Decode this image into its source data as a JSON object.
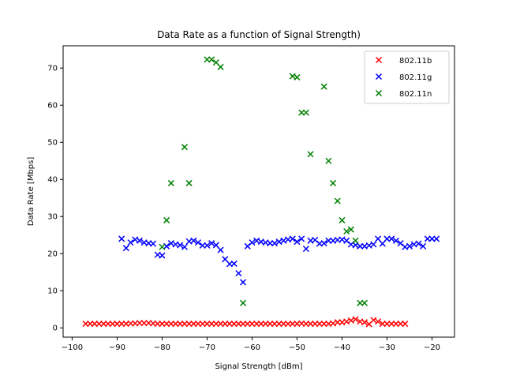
{
  "chart_data": {
    "type": "scatter",
    "title": "Data Rate as a function of Signal Strength)",
    "xlabel": "Signal Strength [dBm]",
    "ylabel": "Data Rate [Mbps]",
    "xlim": [
      -102,
      -15
    ],
    "ylim": [
      -2.5,
      76
    ],
    "xticks": [
      -100,
      -90,
      -80,
      -70,
      -60,
      -50,
      -40,
      -30,
      -20
    ],
    "yticks": [
      0,
      10,
      20,
      30,
      40,
      50,
      60,
      70
    ],
    "xtick_labels": [
      "−100",
      "−90",
      "−80",
      "−70",
      "−60",
      "−50",
      "−40",
      "−30",
      "−20"
    ],
    "ytick_labels": [
      "0",
      "10",
      "20",
      "30",
      "40",
      "50",
      "60",
      "70"
    ],
    "grid": false,
    "marker": "x",
    "legend_position": "top-right",
    "series": [
      {
        "name": "802.11b",
        "color": "#ff0000",
        "x": [
          -97,
          -96,
          -95,
          -94,
          -93,
          -92,
          -91,
          -90,
          -89,
          -88,
          -87,
          -86,
          -85,
          -84,
          -83,
          -82,
          -81,
          -80,
          -79,
          -78,
          -77,
          -76,
          -75,
          -74,
          -73,
          -72,
          -71,
          -70,
          -69,
          -68,
          -67,
          -66,
          -65,
          -64,
          -63,
          -62,
          -61,
          -60,
          -59,
          -58,
          -57,
          -56,
          -55,
          -54,
          -53,
          -52,
          -51,
          -50,
          -49,
          -48,
          -47,
          -46,
          -45,
          -44,
          -43,
          -42,
          -41,
          -40,
          -39,
          -38,
          -37,
          -36,
          -35,
          -34,
          -33,
          -32,
          -31,
          -30,
          -29,
          -28,
          -27,
          -26
        ],
        "y": [
          1.1,
          1.1,
          1.1,
          1.1,
          1.1,
          1.1,
          1.1,
          1.1,
          1.1,
          1.1,
          1.2,
          1.2,
          1.3,
          1.3,
          1.3,
          1.2,
          1.1,
          1.1,
          1.1,
          1.1,
          1.1,
          1.1,
          1.1,
          1.1,
          1.1,
          1.1,
          1.1,
          1.1,
          1.1,
          1.1,
          1.1,
          1.1,
          1.1,
          1.1,
          1.1,
          1.1,
          1.1,
          1.1,
          1.1,
          1.1,
          1.1,
          1.1,
          1.1,
          1.1,
          1.1,
          1.1,
          1.1,
          1.1,
          1.2,
          1.1,
          1.1,
          1.1,
          1.1,
          1.1,
          1.1,
          1.2,
          1.5,
          1.5,
          1.7,
          2.0,
          2.3,
          1.7,
          1.5,
          1.0,
          2.1,
          1.7,
          1.1,
          1.1,
          1.1,
          1.1,
          1.1,
          1.1
        ]
      },
      {
        "name": "802.11g",
        "color": "#0000ff",
        "x": [
          -89,
          -88,
          -87,
          -86,
          -85,
          -84,
          -83,
          -82,
          -81,
          -80,
          -79,
          -78,
          -77,
          -76,
          -75,
          -74,
          -73,
          -72,
          -71,
          -70,
          -69,
          -68,
          -67,
          -66,
          -65,
          -64,
          -63,
          -62,
          -61,
          -60,
          -59,
          -58,
          -57,
          -56,
          -55,
          -54,
          -53,
          -52,
          -51,
          -50,
          -49,
          -48,
          -47,
          -46,
          -45,
          -44,
          -43,
          -42,
          -41,
          -40,
          -39,
          -38,
          -37,
          -36,
          -35,
          -34,
          -33,
          -32,
          -31,
          -30,
          -29,
          -28,
          -27,
          -26,
          -25,
          -24,
          -23,
          -22,
          -21,
          -20,
          -19
        ],
        "y": [
          24.0,
          21.5,
          23.0,
          23.8,
          23.5,
          23.0,
          22.8,
          22.7,
          19.7,
          19.5,
          22.0,
          22.8,
          22.5,
          22.3,
          21.8,
          23.3,
          23.5,
          23.0,
          22.2,
          22.2,
          22.8,
          22.3,
          21.0,
          18.5,
          17.2,
          17.3,
          14.7,
          12.3,
          22.0,
          23.0,
          23.5,
          23.2,
          23.0,
          22.8,
          22.8,
          23.2,
          23.5,
          23.8,
          24.0,
          23.2,
          24.0,
          21.3,
          23.5,
          23.7,
          22.7,
          22.8,
          23.5,
          23.5,
          23.7,
          23.8,
          23.5,
          22.5,
          22.3,
          22.0,
          22.0,
          22.2,
          22.5,
          24.0,
          22.7,
          24.0,
          24.0,
          23.5,
          22.8,
          21.8,
          22.0,
          22.5,
          22.7,
          22.0,
          24.0,
          24.0,
          24.0
        ]
      },
      {
        "name": "802.11n",
        "color": "#008000",
        "x": [
          -80,
          -79,
          -78,
          -75,
          -74,
          -70,
          -69,
          -68,
          -67,
          -62,
          -51,
          -50,
          -49,
          -48,
          -47,
          -44,
          -43,
          -42,
          -41,
          -40,
          -39,
          -38,
          -37,
          -36,
          -35
        ],
        "y": [
          21.8,
          29.0,
          39.0,
          48.7,
          39.0,
          72.3,
          72.3,
          71.5,
          70.3,
          6.7,
          67.8,
          67.5,
          58.0,
          58.0,
          46.8,
          65.0,
          45.0,
          39.0,
          34.2,
          29.0,
          26.0,
          26.5,
          23.5,
          6.7,
          6.7
        ]
      }
    ]
  }
}
